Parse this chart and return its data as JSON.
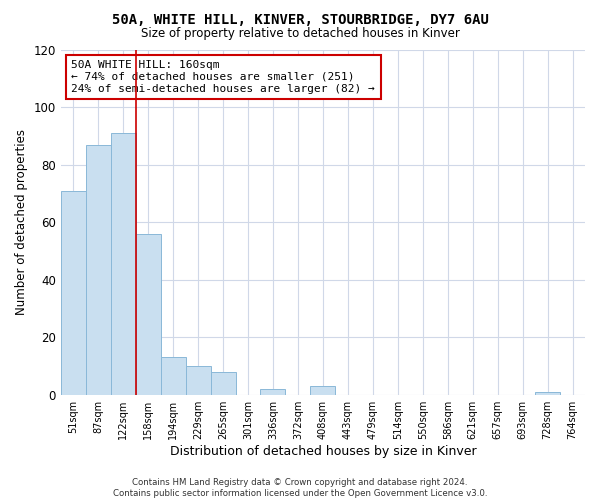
{
  "title": "50A, WHITE HILL, KINVER, STOURBRIDGE, DY7 6AU",
  "subtitle": "Size of property relative to detached houses in Kinver",
  "xlabel": "Distribution of detached houses by size in Kinver",
  "ylabel": "Number of detached properties",
  "bar_color": "#c9dff0",
  "bar_edge_color": "#8ab8d8",
  "bin_labels": [
    "51sqm",
    "87sqm",
    "122sqm",
    "158sqm",
    "194sqm",
    "229sqm",
    "265sqm",
    "301sqm",
    "336sqm",
    "372sqm",
    "408sqm",
    "443sqm",
    "479sqm",
    "514sqm",
    "550sqm",
    "586sqm",
    "621sqm",
    "657sqm",
    "693sqm",
    "728sqm",
    "764sqm"
  ],
  "bar_heights": [
    71,
    87,
    91,
    56,
    13,
    10,
    8,
    0,
    2,
    0,
    3,
    0,
    0,
    0,
    0,
    0,
    0,
    0,
    0,
    1,
    0
  ],
  "ylim": [
    0,
    120
  ],
  "yticks": [
    0,
    20,
    40,
    60,
    80,
    100,
    120
  ],
  "vline_x": 3,
  "vline_color": "#cc0000",
  "annotation_title": "50A WHITE HILL: 160sqm",
  "annotation_line1": "← 74% of detached houses are smaller (251)",
  "annotation_line2": "24% of semi-detached houses are larger (82) →",
  "annotation_box_color": "#ffffff",
  "annotation_box_edge_color": "#cc0000",
  "footer1": "Contains HM Land Registry data © Crown copyright and database right 2024.",
  "footer2": "Contains public sector information licensed under the Open Government Licence v3.0.",
  "background_color": "#ffffff",
  "grid_color": "#d0d8e8"
}
